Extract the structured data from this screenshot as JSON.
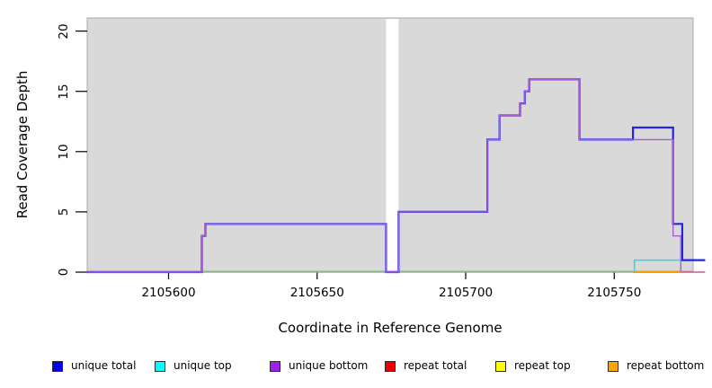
{
  "figure": {
    "xlabel": "Coordinate in Reference Genome",
    "ylabel": "Read Coverage Depth"
  },
  "chart_data": {
    "type": "line",
    "subtype": "step-coverage-plot",
    "title": "",
    "xlabel": "Coordinate in Reference Genome",
    "ylabel": "Read Coverage Depth",
    "x_ticks": [
      2105600,
      2105650,
      2105700,
      2105750
    ],
    "y_ticks": [
      0,
      5,
      10,
      15,
      20
    ],
    "xlim": [
      2105572.6,
      2105780.6
    ],
    "ylim": [
      0,
      21
    ],
    "grid": false,
    "legend_position": "bottom",
    "plot_background": "#d9d9d9",
    "plot_border": "#a9a9a9",
    "coverage_gap_x": [
      2105673.2,
      2105677.4
    ],
    "series": [
      {
        "key": "zero-segment-green",
        "name": "zero coverage segment (green)",
        "color": "#74b974",
        "width": 1.2,
        "steps": [
          [
            2105611.2,
            0
          ]
        ],
        "end": 2105756.3
      },
      {
        "key": "zero-segment-orange",
        "name": "zero coverage segment (orange)",
        "color": "#ff9d00",
        "width": 2,
        "steps": [
          [
            2105756.3,
            0
          ]
        ],
        "end": 2105772.4
      },
      {
        "key": "zero-segment-crimson",
        "name": "zero coverage segment (crimson)",
        "color": "#c9627f",
        "width": 1.5,
        "steps": [
          [
            2105772.4,
            0
          ]
        ],
        "end": 2105780.6
      },
      {
        "key": "unique-top",
        "name": "unique top",
        "color": "#22dde6",
        "width": 1.5,
        "steps": [
          [
            2105756.4,
            0
          ],
          [
            2105756.8,
            1
          ]
        ],
        "end": 2105780.6
      },
      {
        "key": "unique-total",
        "name": "unique total",
        "color": "#2424e8",
        "width": 2.2,
        "steps": [
          [
            2105572.6,
            0
          ],
          [
            2105611.2,
            3
          ],
          [
            2105612.4,
            4
          ],
          [
            2105673.2,
            0
          ],
          [
            2105677.4,
            5
          ],
          [
            2105707.3,
            11
          ],
          [
            2105711.4,
            13
          ],
          [
            2105718.3,
            14
          ],
          [
            2105719.9,
            15
          ],
          [
            2105721.4,
            16
          ],
          [
            2105738.3,
            11
          ],
          [
            2105756.3,
            12
          ],
          [
            2105769.8,
            4
          ],
          [
            2105772.9,
            1
          ]
        ],
        "end": 2105780.6
      },
      {
        "key": "unique-bottom",
        "name": "unique bottom",
        "color": "#a85ae0",
        "width": 1.4,
        "steps": [
          [
            2105572.6,
            0
          ],
          [
            2105611.2,
            3
          ],
          [
            2105612.4,
            4
          ],
          [
            2105673.2,
            0
          ],
          [
            2105677.4,
            5
          ],
          [
            2105707.3,
            11
          ],
          [
            2105711.4,
            13
          ],
          [
            2105718.3,
            14
          ],
          [
            2105719.9,
            15
          ],
          [
            2105721.4,
            16
          ],
          [
            2105738.3,
            11
          ],
          [
            2105769.8,
            3
          ],
          [
            2105772.4,
            0
          ]
        ],
        "end": 2105772.4
      }
    ],
    "legend": [
      {
        "label": "unique total",
        "color": "#0000ee"
      },
      {
        "label": "unique top",
        "color": "#00ffff"
      },
      {
        "label": "unique bottom",
        "color": "#a020f0"
      },
      {
        "label": "repeat total",
        "color": "#ee0000"
      },
      {
        "label": "repeat top",
        "color": "#ffff00"
      },
      {
        "label": "repeat bottom",
        "color": "#ffa500"
      }
    ]
  }
}
